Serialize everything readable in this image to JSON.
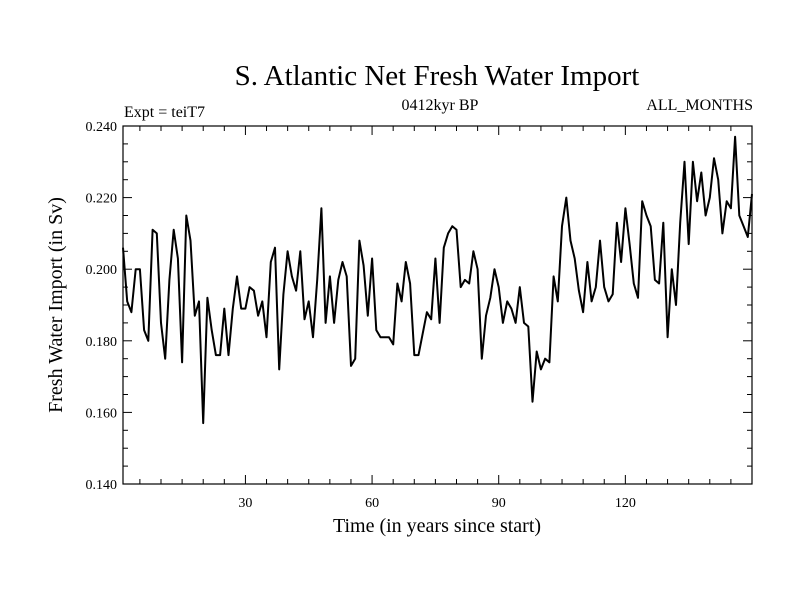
{
  "chart_data": {
    "type": "line",
    "title": "S. Atlantic Net Fresh Water Import",
    "subtitle_left": "Expt = teiT7",
    "subtitle_center": "0412kyr BP",
    "subtitle_right": "ALL_MONTHS",
    "xlabel": "Time (in years since start)",
    "ylabel": "Fresh Water Import (in Sv)",
    "xlim": [
      1,
      150
    ],
    "ylim": [
      0.14,
      0.24
    ],
    "xticks": [
      30,
      60,
      90,
      120
    ],
    "xtick_labels": [
      "30",
      "60",
      "90",
      "120"
    ],
    "yticks": [
      0.14,
      0.16,
      0.18,
      0.2,
      0.22,
      0.24
    ],
    "ytick_labels": [
      "0.140",
      "0.160",
      "0.180",
      "0.200",
      "0.220",
      "0.240"
    ],
    "grid": false,
    "series": [
      {
        "name": "Net Fresh Water Import",
        "values": [
          0.206,
          0.191,
          0.188,
          0.2,
          0.2,
          0.183,
          0.18,
          0.211,
          0.21,
          0.185,
          0.175,
          0.197,
          0.211,
          0.203,
          0.174,
          0.215,
          0.208,
          0.187,
          0.191,
          0.157,
          0.192,
          0.183,
          0.176,
          0.176,
          0.189,
          0.176,
          0.189,
          0.198,
          0.189,
          0.189,
          0.195,
          0.194,
          0.187,
          0.191,
          0.181,
          0.202,
          0.206,
          0.172,
          0.193,
          0.205,
          0.198,
          0.194,
          0.205,
          0.186,
          0.191,
          0.181,
          0.197,
          0.217,
          0.185,
          0.198,
          0.185,
          0.197,
          0.202,
          0.198,
          0.173,
          0.175,
          0.208,
          0.201,
          0.187,
          0.203,
          0.183,
          0.181,
          0.181,
          0.181,
          0.179,
          0.196,
          0.191,
          0.202,
          0.196,
          0.176,
          0.176,
          0.182,
          0.188,
          0.186,
          0.203,
          0.185,
          0.206,
          0.21,
          0.212,
          0.211,
          0.195,
          0.197,
          0.196,
          0.205,
          0.2,
          0.175,
          0.187,
          0.192,
          0.2,
          0.195,
          0.185,
          0.191,
          0.189,
          0.185,
          0.195,
          0.185,
          0.184,
          0.163,
          0.177,
          0.172,
          0.175,
          0.174,
          0.198,
          0.191,
          0.212,
          0.22,
          0.208,
          0.203,
          0.194,
          0.188,
          0.202,
          0.191,
          0.195,
          0.208,
          0.195,
          0.191,
          0.193,
          0.213,
          0.202,
          0.217,
          0.207,
          0.196,
          0.192,
          0.219,
          0.215,
          0.212,
          0.197,
          0.196,
          0.213,
          0.181,
          0.2,
          0.19,
          0.213,
          0.23,
          0.207,
          0.23,
          0.219,
          0.227,
          0.215,
          0.22,
          0.231,
          0.225,
          0.21,
          0.219,
          0.217,
          0.237,
          0.215,
          0.212,
          0.209,
          0.221
        ]
      }
    ]
  }
}
